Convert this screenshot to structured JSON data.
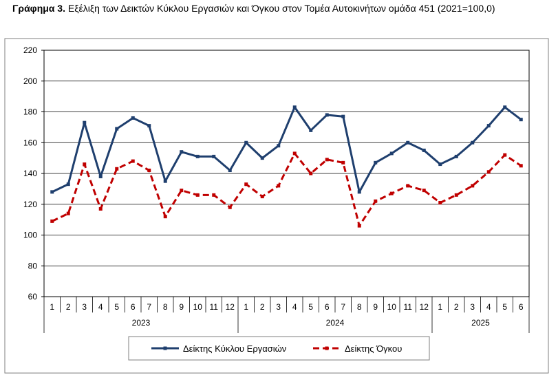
{
  "title_prefix": "Γράφημα 3.",
  "title_text": "Εξέλιξη των Δεικτών Κύκλου Εργασιών και Όγκου στον Τομέα Αυτοκινήτων ομάδα 451 (2021=100,0)",
  "chart_data": {
    "type": "line",
    "title": "Γράφημα 3. Εξέλιξη των Δεικτών Κύκλου Εργασιών και Όγκου στον Τομέα Αυτοκινήτων ομάδα 451 (2021=100,0)",
    "xlabel": "",
    "ylabel": "",
    "ylim": [
      60,
      220
    ],
    "yticks": [
      60,
      80,
      100,
      120,
      140,
      160,
      180,
      200,
      220
    ],
    "grid": "horizontal",
    "legend_position": "bottom",
    "categories": [
      "1",
      "2",
      "3",
      "4",
      "5",
      "6",
      "7",
      "8",
      "9",
      "10",
      "11",
      "12",
      "1",
      "2",
      "3",
      "4",
      "5",
      "6",
      "7",
      "8",
      "9",
      "10",
      "11",
      "12",
      "1",
      "2",
      "3",
      "4",
      "5",
      "6"
    ],
    "year_groups": [
      {
        "label": "2023",
        "count": 12
      },
      {
        "label": "2024",
        "count": 12
      },
      {
        "label": "2025",
        "count": 6
      }
    ],
    "series": [
      {
        "name": "Δείκτης Κύκλου Εργασιών",
        "color": "#1f3f6e",
        "style": "solid",
        "values": [
          128,
          133,
          173,
          138,
          169,
          176,
          171,
          135,
          154,
          151,
          151,
          142,
          160,
          150,
          158,
          183,
          168,
          178,
          177,
          128,
          147,
          153,
          160,
          155,
          146,
          151,
          160,
          171,
          183,
          175
        ]
      },
      {
        "name": "Δείκτης Όγκου",
        "color": "#c00000",
        "style": "dashed",
        "values": [
          109,
          114,
          146,
          117,
          143,
          148,
          142,
          112,
          129,
          126,
          126,
          118,
          133,
          125,
          132,
          153,
          140,
          149,
          147,
          106,
          122,
          127,
          132,
          129,
          121,
          126,
          132,
          141,
          152,
          145
        ]
      }
    ]
  }
}
